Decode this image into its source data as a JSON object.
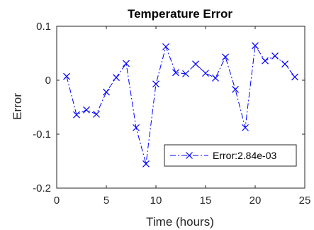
{
  "chart_data": {
    "type": "line",
    "title": "Temperature Error",
    "xlabel": "Time (hours)",
    "ylabel": "Error",
    "xlim": [
      0,
      25
    ],
    "ylim": [
      -0.2,
      0.1
    ],
    "xticks": [
      0,
      5,
      10,
      15,
      20,
      25
    ],
    "xtick_labels": [
      "0",
      "5",
      "10",
      "15",
      "20",
      "25"
    ],
    "yticks": [
      -0.2,
      -0.1,
      0,
      0.1
    ],
    "ytick_labels": [
      "-0.2",
      "-0.1",
      "0",
      "0.1"
    ],
    "grid": false,
    "legend_position": "lower-right",
    "series": [
      {
        "name": "Error:2.84e-03",
        "color": "#0000ff",
        "line_style": "dash-dot",
        "marker": "x",
        "x": [
          1,
          2,
          3,
          4,
          5,
          6,
          7,
          8,
          9,
          10,
          11,
          12,
          13,
          14,
          15,
          16,
          17,
          18,
          19,
          20,
          21,
          22,
          23,
          24
        ],
        "y": [
          0.007,
          -0.064,
          -0.055,
          -0.063,
          -0.022,
          0.005,
          0.031,
          -0.088,
          -0.155,
          -0.007,
          0.062,
          0.014,
          0.012,
          0.03,
          0.013,
          0.004,
          0.043,
          -0.017,
          -0.088,
          0.064,
          0.036,
          0.045,
          0.03,
          0.006
        ]
      }
    ]
  }
}
